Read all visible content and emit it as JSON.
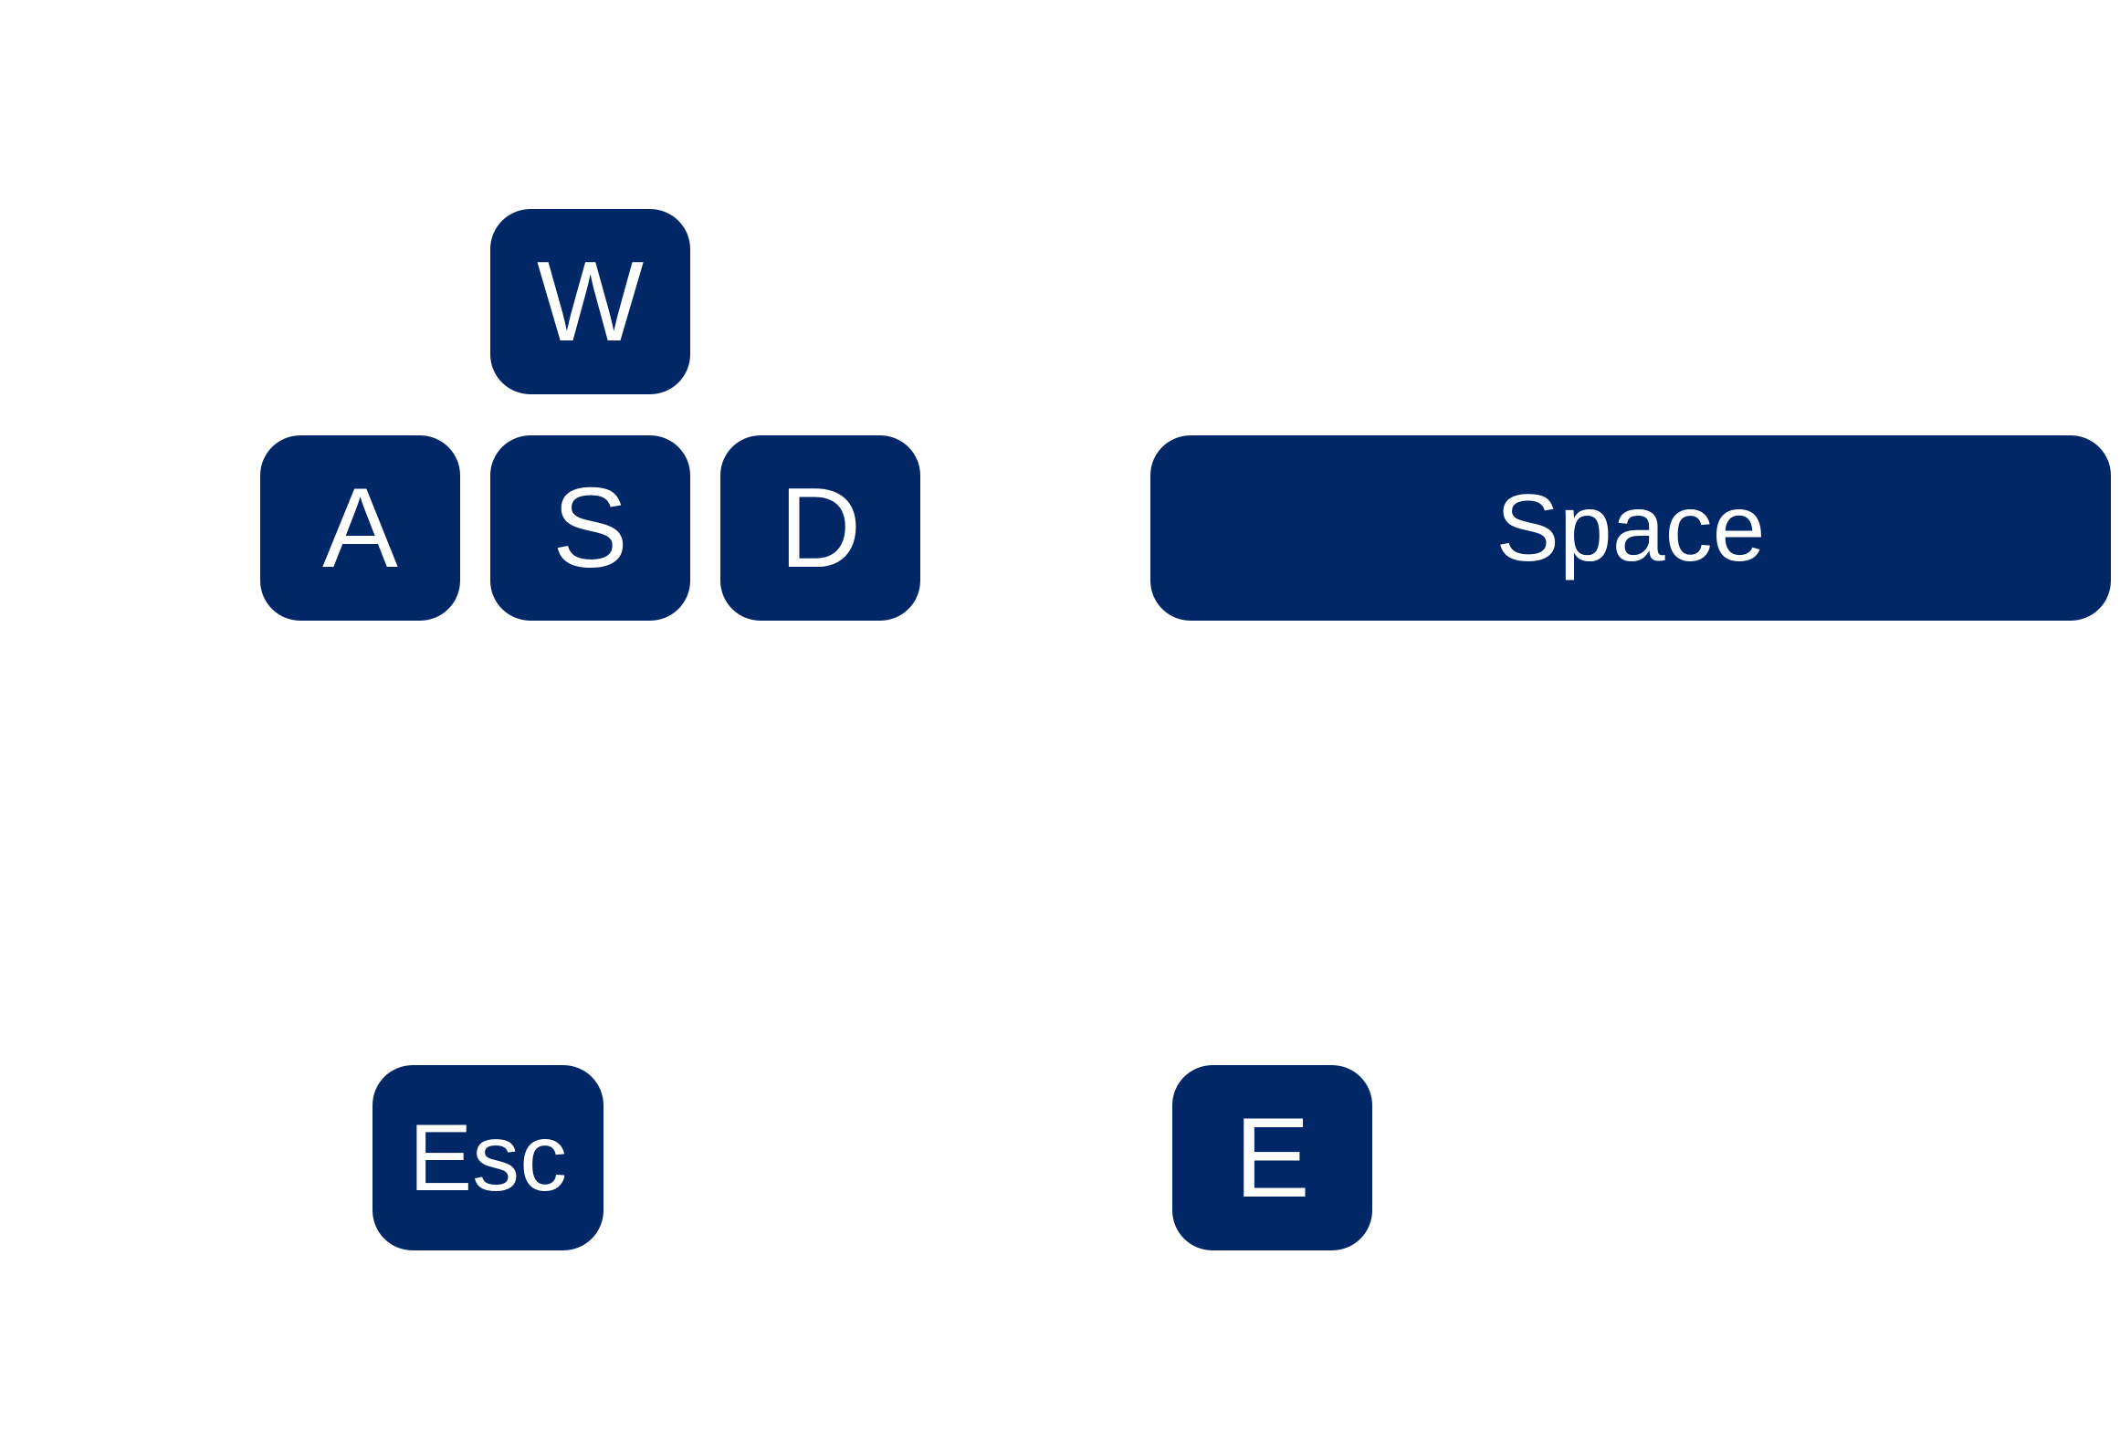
{
  "colors": {
    "background": "#ffffff",
    "key_fill": "#022766",
    "key_text": "#ffffff"
  },
  "keys": {
    "w": "W",
    "a": "A",
    "s": "S",
    "d": "D",
    "space": "Space",
    "esc": "Esc",
    "e": "E"
  }
}
